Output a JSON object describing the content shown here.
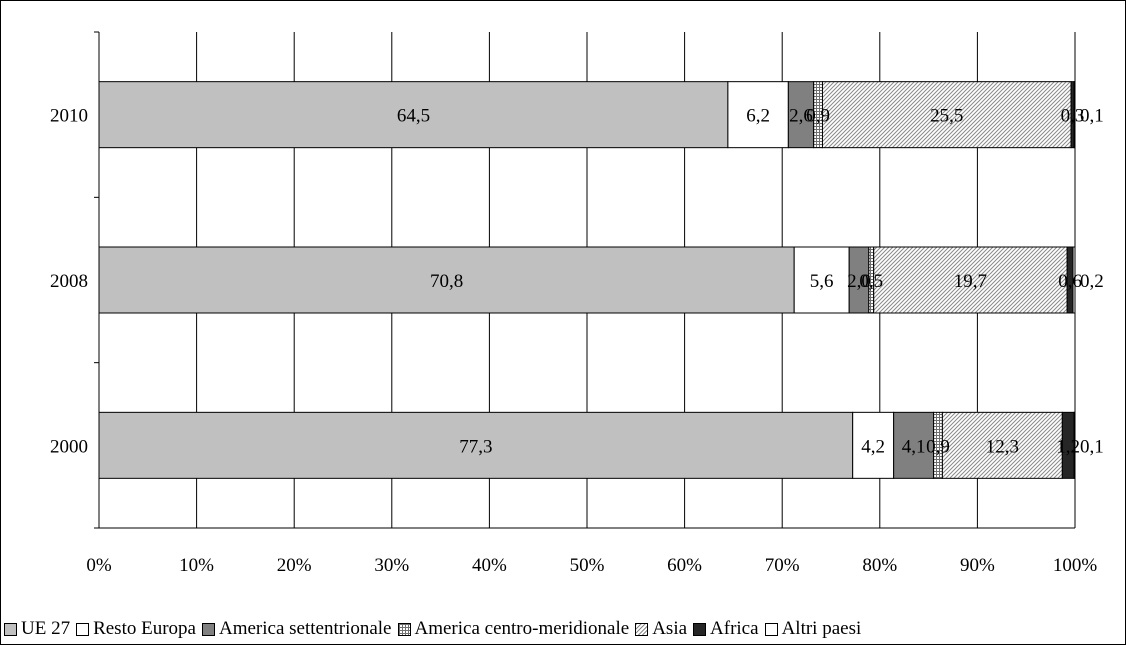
{
  "chart_data": {
    "type": "bar",
    "orientation": "horizontal",
    "stacked": "percent",
    "title": "",
    "xlabel": "",
    "ylabel": "",
    "xlim": [
      0,
      100
    ],
    "x_ticks": [
      "0%",
      "10%",
      "20%",
      "30%",
      "40%",
      "50%",
      "60%",
      "70%",
      "80%",
      "90%",
      "100%"
    ],
    "grid": "vertical",
    "legend_position": "bottom",
    "categories": [
      "2010",
      "2008",
      "2000"
    ],
    "series": [
      {
        "name": "UE 27",
        "values": [
          64.5,
          70.8,
          77.3
        ],
        "labels": [
          "64,5",
          "70,8",
          "77,3"
        ],
        "color": "#c0c0c0",
        "pattern": "solid"
      },
      {
        "name": "Resto Europa",
        "values": [
          6.2,
          5.6,
          4.2
        ],
        "labels": [
          "6,2",
          "5,6",
          "4,2"
        ],
        "color": "#ffffff",
        "pattern": "solid"
      },
      {
        "name": "America settentrionale",
        "values": [
          2.6,
          2.0,
          4.1
        ],
        "labels": [
          "2,6",
          "2,0",
          "4,1"
        ],
        "color": "#808080",
        "pattern": "solid"
      },
      {
        "name": "America centro-meridionale",
        "values": [
          0.9,
          0.5,
          0.9
        ],
        "labels": [
          "0,9",
          "0,5",
          "0,9"
        ],
        "color": "#ffffff",
        "pattern": "grid"
      },
      {
        "name": "Asia",
        "values": [
          25.5,
          19.7,
          12.3
        ],
        "labels": [
          "25,5",
          "19,7",
          "12,3"
        ],
        "color": "#ffffff",
        "pattern": "diagonal"
      },
      {
        "name": "Africa",
        "values": [
          0.3,
          0.6,
          1.2
        ],
        "labels": [
          "0,3",
          "0,6",
          "1,2"
        ],
        "color": "#262626",
        "pattern": "solid"
      },
      {
        "name": "Altri paesi",
        "values": [
          0.1,
          0.2,
          0.1
        ],
        "labels": [
          "0,1",
          "0,2",
          "0,1"
        ],
        "color": "#ffffff",
        "pattern": "solid"
      }
    ]
  }
}
